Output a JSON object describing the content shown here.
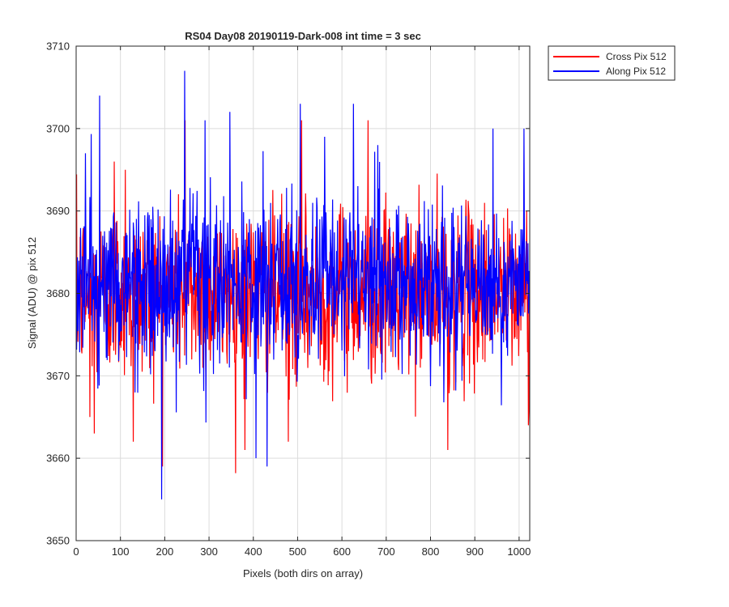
{
  "chart_data": {
    "type": "line",
    "title": "RS04 Day08 20190119-Dark-008 int time = 3 sec",
    "xlabel": "Pixels (both dirs on array)",
    "ylabel": "Signal (ADU) @ pix 512",
    "xlim": [
      0,
      1024
    ],
    "ylim": [
      3650,
      3710
    ],
    "xticks": [
      0,
      100,
      200,
      300,
      400,
      500,
      600,
      700,
      800,
      900,
      1000
    ],
    "yticks": [
      3650,
      3660,
      3670,
      3680,
      3690,
      3700,
      3710
    ],
    "grid": true,
    "legend_location": "outside top-right",
    "series": [
      {
        "name": "Cross Pix 512",
        "color": "#ff0000",
        "n_points": 1024,
        "approx_mean": 3680,
        "noise_pattern": "dense random noise, mostly within 3670-3690",
        "notable_points": [
          {
            "x": 30,
            "y": 3665
          },
          {
            "x": 40,
            "y": 3663
          },
          {
            "x": 85,
            "y": 3696
          },
          {
            "x": 110,
            "y": 3695
          },
          {
            "x": 128,
            "y": 3662
          },
          {
            "x": 245,
            "y": 3701
          },
          {
            "x": 380,
            "y": 3661
          },
          {
            "x": 478,
            "y": 3662
          },
          {
            "x": 508,
            "y": 3701
          },
          {
            "x": 658,
            "y": 3701
          },
          {
            "x": 838,
            "y": 3661
          },
          {
            "x": 1020,
            "y": 3664
          }
        ]
      },
      {
        "name": "Along Pix 512",
        "color": "#0000ff",
        "n_points": 1024,
        "approx_mean": 3681,
        "noise_pattern": "dense random noise, mostly within 3672-3692",
        "notable_points": [
          {
            "x": 20,
            "y": 3697
          },
          {
            "x": 52,
            "y": 3704
          },
          {
            "x": 192,
            "y": 3655
          },
          {
            "x": 244,
            "y": 3707
          },
          {
            "x": 290,
            "y": 3701
          },
          {
            "x": 405,
            "y": 3660
          },
          {
            "x": 430,
            "y": 3659
          },
          {
            "x": 505,
            "y": 3703
          },
          {
            "x": 560,
            "y": 3699
          },
          {
            "x": 625,
            "y": 3703
          },
          {
            "x": 680,
            "y": 3698
          },
          {
            "x": 940,
            "y": 3700
          },
          {
            "x": 1010,
            "y": 3700
          }
        ]
      }
    ]
  }
}
